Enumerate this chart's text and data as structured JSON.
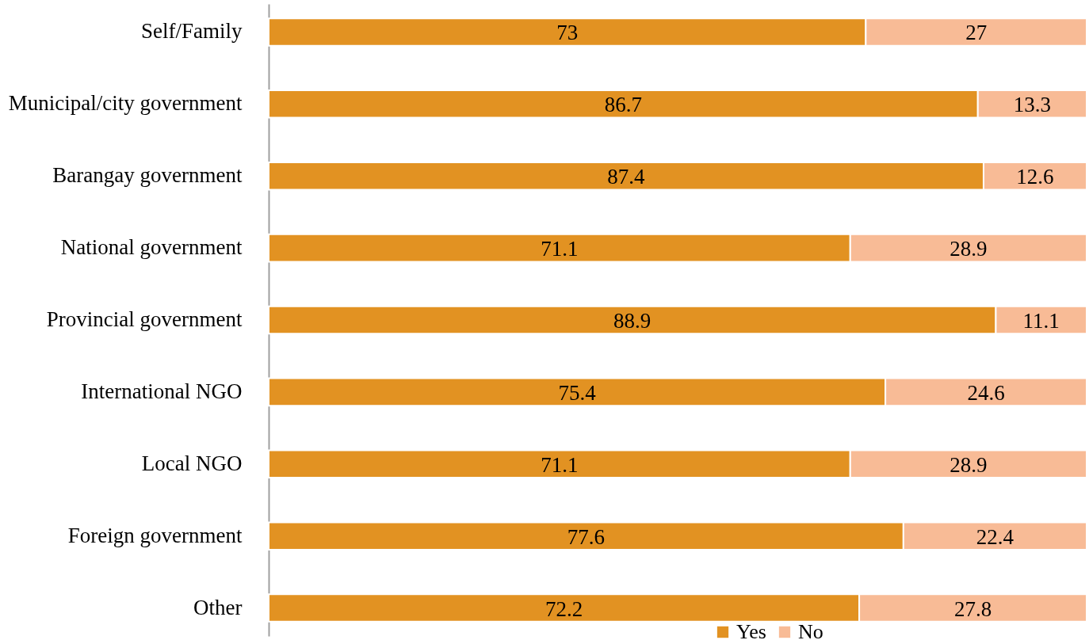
{
  "chart_data": {
    "type": "bar",
    "orientation": "horizontal",
    "stacked": true,
    "data_labels": true,
    "legend": "bottom",
    "grid": false,
    "tick_labels": "y",
    "xlim": [
      0,
      100
    ],
    "categories": [
      "Self/Family",
      "Municipal/city government",
      "Barangay government",
      "National government",
      "Provincial government",
      "International NGO",
      "Local NGO",
      "Foreign government",
      "Other"
    ],
    "series": [
      {
        "name": "Yes",
        "color": "#e29222",
        "values": [
          73,
          86.7,
          87.4,
          71.1,
          88.9,
          75.4,
          71.1,
          77.6,
          72.2
        ]
      },
      {
        "name": "No",
        "color": "#f8bb96",
        "values": [
          27,
          13.3,
          12.6,
          28.9,
          11.1,
          24.6,
          28.9,
          22.4,
          27.8
        ]
      }
    ]
  }
}
